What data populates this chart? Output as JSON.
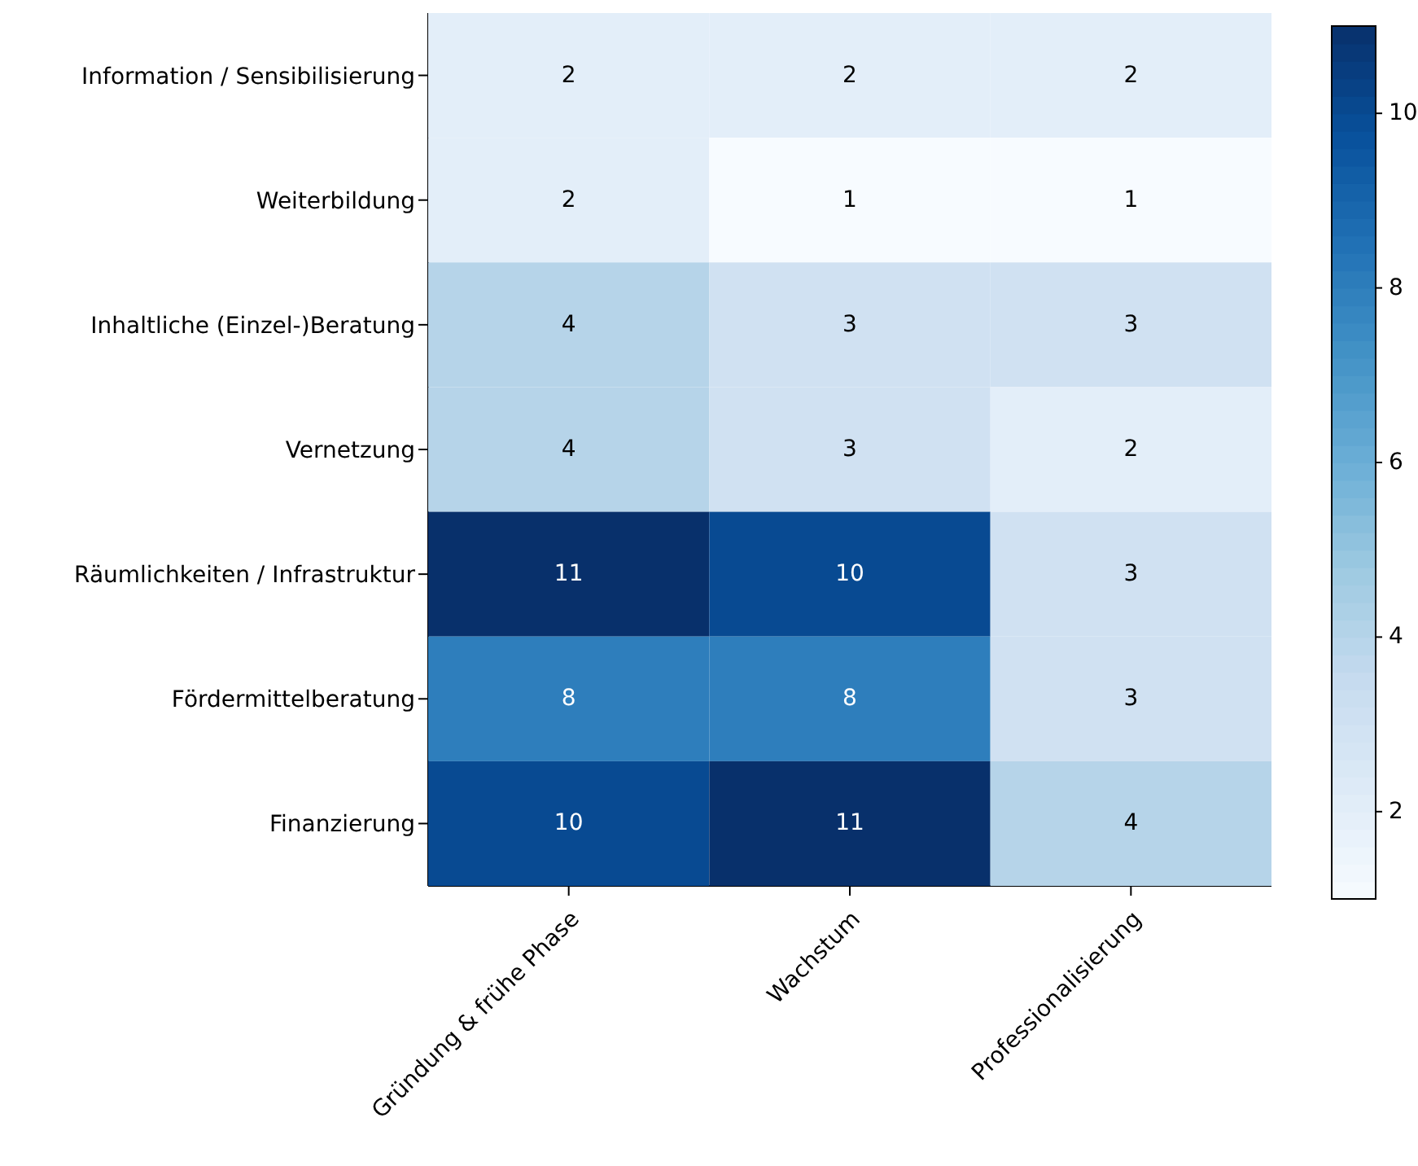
{
  "chart_data": {
    "type": "heatmap",
    "categories": [
      "Gründung & frühe Phase",
      "Wachstum",
      "Professionalisierung"
    ],
    "y_categories": [
      "Information / Sensibilisierung",
      "Weiterbildung",
      "Inhaltliche (Einzel-)Beratung",
      "Vernetzung",
      "Räumlichkeiten / Infrastruktur",
      "Fördermittelberatung",
      "Finanzierung"
    ],
    "cells": [
      [
        2,
        2,
        2
      ],
      [
        2,
        1,
        1
      ],
      [
        4,
        3,
        3
      ],
      [
        4,
        3,
        2
      ],
      [
        11,
        10,
        3
      ],
      [
        8,
        8,
        3
      ],
      [
        10,
        11,
        4
      ]
    ],
    "data_labels": true,
    "clim": [
      1,
      11
    ],
    "cticks": [
      2,
      4,
      6,
      8,
      10
    ]
  }
}
